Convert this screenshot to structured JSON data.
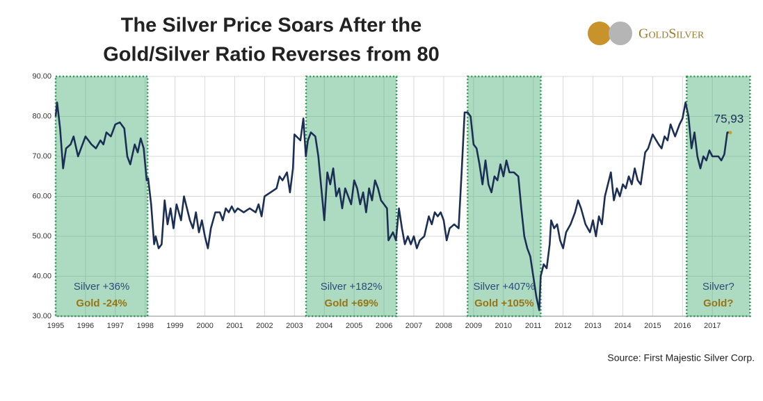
{
  "chart_data": {
    "type": "line",
    "title": [
      "The Silver Price Soars After the",
      "Gold/Silver Ratio Reverses from 80"
    ],
    "logo": "GoldSilver",
    "source": "Source: First Majestic Silver Corp.",
    "color": "#1b2f55",
    "grid": true,
    "xlim": [
      1995,
      2018.3
    ],
    "xticks": [
      1995,
      1996,
      1997,
      1998,
      1999,
      2000,
      2001,
      2002,
      2003,
      2004,
      2005,
      2006,
      2007,
      2008,
      2009,
      2010,
      2011,
      2012,
      2013,
      2014,
      2015,
      2016,
      2017
    ],
    "ylim": [
      30,
      90
    ],
    "yticks": [
      {
        "value": 30,
        "label": "30.00"
      },
      {
        "value": 40,
        "label": "40.00"
      },
      {
        "value": 50,
        "label": "50.00"
      },
      {
        "value": 60,
        "label": "60.00"
      },
      {
        "value": 70,
        "label": "70.00"
      },
      {
        "value": 80,
        "label": "80.00"
      },
      {
        "value": 90,
        "label": "90.00"
      }
    ],
    "regions": [
      {
        "start": 1995,
        "end": 1998.08,
        "silver": "Silver +36%",
        "gold": "Gold -24%"
      },
      {
        "start": 2003.39,
        "end": 2006.42,
        "silver": "Silver +182%",
        "gold": "Gold +69%"
      },
      {
        "start": 2008.8,
        "end": 2011.25,
        "silver": "Silver +407%",
        "gold": "Gold +105%"
      },
      {
        "start": 2016.14,
        "end": 2018.26,
        "silver": "Silver?",
        "gold": "Gold?"
      }
    ],
    "annotations": [
      {
        "text": "75,93",
        "x": 2017.6,
        "y": 75.93
      }
    ],
    "x": [
      1995.0,
      1995.05,
      1995.15,
      1995.25,
      1995.35,
      1995.5,
      1995.6,
      1995.75,
      1995.9,
      1996.0,
      1996.2,
      1996.35,
      1996.5,
      1996.6,
      1996.7,
      1996.85,
      1997.0,
      1997.15,
      1997.3,
      1997.4,
      1997.5,
      1997.65,
      1997.75,
      1997.85,
      1997.95,
      1998.05,
      1998.1,
      1998.2,
      1998.3,
      1998.35,
      1998.45,
      1998.55,
      1998.65,
      1998.75,
      1998.85,
      1998.95,
      1999.05,
      1999.2,
      1999.3,
      1999.4,
      1999.5,
      1999.6,
      1999.7,
      1999.8,
      1999.9,
      2000.0,
      2000.1,
      2000.2,
      2000.35,
      2000.5,
      2000.6,
      2000.7,
      2000.8,
      2000.9,
      2001.0,
      2001.1,
      2001.3,
      2001.5,
      2001.7,
      2001.8,
      2001.9,
      2002.0,
      2002.2,
      2002.4,
      2002.5,
      2002.6,
      2002.75,
      2002.85,
      2002.95,
      2003.0,
      2003.2,
      2003.3,
      2003.38,
      2003.45,
      2003.55,
      2003.7,
      2003.8,
      2003.9,
      2004.0,
      2004.1,
      2004.2,
      2004.3,
      2004.4,
      2004.5,
      2004.6,
      2004.7,
      2004.8,
      2004.9,
      2005.0,
      2005.1,
      2005.2,
      2005.3,
      2005.4,
      2005.5,
      2005.6,
      2005.7,
      2005.8,
      2005.9,
      2006.0,
      2006.1,
      2006.15,
      2006.3,
      2006.4,
      2006.5,
      2006.6,
      2006.7,
      2006.8,
      2006.9,
      2007.0,
      2007.1,
      2007.2,
      2007.35,
      2007.5,
      2007.6,
      2007.7,
      2007.8,
      2007.9,
      2008.0,
      2008.1,
      2008.2,
      2008.35,
      2008.5,
      2008.6,
      2008.7,
      2008.8,
      2008.9,
      2009.0,
      2009.1,
      2009.2,
      2009.3,
      2009.4,
      2009.5,
      2009.6,
      2009.7,
      2009.8,
      2009.9,
      2010.0,
      2010.1,
      2010.2,
      2010.35,
      2010.5,
      2010.6,
      2010.7,
      2010.8,
      2010.9,
      2011.0,
      2011.1,
      2011.2,
      2011.25,
      2011.35,
      2011.45,
      2011.55,
      2011.6,
      2011.7,
      2011.8,
      2011.9,
      2012.0,
      2012.1,
      2012.25,
      2012.4,
      2012.5,
      2012.6,
      2012.75,
      2012.9,
      2013.0,
      2013.1,
      2013.2,
      2013.3,
      2013.4,
      2013.5,
      2013.6,
      2013.7,
      2013.8,
      2013.9,
      2014.0,
      2014.1,
      2014.2,
      2014.3,
      2014.4,
      2014.5,
      2014.6,
      2014.75,
      2014.85,
      2015.0,
      2015.2,
      2015.3,
      2015.4,
      2015.5,
      2015.6,
      2015.75,
      2015.9,
      2016.0,
      2016.1,
      2016.2,
      2016.3,
      2016.4,
      2016.5,
      2016.6,
      2016.7,
      2016.8,
      2016.9,
      2017.0,
      2017.2,
      2017.3,
      2017.4,
      2017.5,
      2017.6
    ],
    "values": [
      80,
      83.5,
      77,
      67,
      72,
      73,
      75,
      70,
      73,
      75,
      73,
      72,
      74,
      73,
      76,
      75,
      78,
      78.5,
      77,
      70,
      68,
      73,
      71,
      74.5,
      72,
      64,
      64.5,
      58,
      48,
      50,
      47,
      48,
      59,
      53,
      57,
      52,
      58,
      54,
      60,
      57,
      54,
      52,
      56,
      51,
      54,
      50,
      47,
      52,
      56,
      56,
      54,
      57,
      56,
      57.5,
      56,
      57,
      56,
      57,
      56,
      58,
      55,
      60,
      61,
      62,
      65,
      64,
      66,
      61,
      67,
      75.5,
      74,
      79.5,
      70,
      74,
      76,
      75,
      70,
      62,
      54,
      66,
      63,
      67,
      60,
      62,
      57,
      62,
      60,
      58,
      64,
      62,
      58,
      61,
      56,
      62,
      59,
      64,
      62,
      59,
      58,
      57,
      49,
      51,
      49,
      57,
      52,
      48,
      50,
      48,
      50,
      47,
      49,
      50,
      55,
      53,
      56,
      55,
      56,
      54,
      49,
      52,
      53,
      52,
      66,
      81,
      81,
      80,
      73,
      72,
      68,
      63,
      69,
      63,
      61,
      65,
      64,
      68,
      65,
      69,
      66,
      66,
      65,
      57,
      50,
      47,
      45,
      40,
      35,
      31.5,
      40,
      43,
      42,
      48,
      54,
      52,
      53,
      49,
      47,
      51,
      53,
      56,
      59,
      57,
      53,
      51,
      54,
      50,
      55,
      53,
      60,
      63,
      66,
      59,
      62,
      60,
      63,
      62,
      65,
      63,
      67,
      64,
      63,
      71,
      72,
      75.5,
      73,
      72,
      75,
      74,
      78,
      75,
      78,
      79.5,
      83.5,
      80,
      72,
      76,
      70,
      67,
      70,
      69,
      71.5,
      70,
      70,
      69,
      70.5,
      76,
      75.93
    ]
  }
}
